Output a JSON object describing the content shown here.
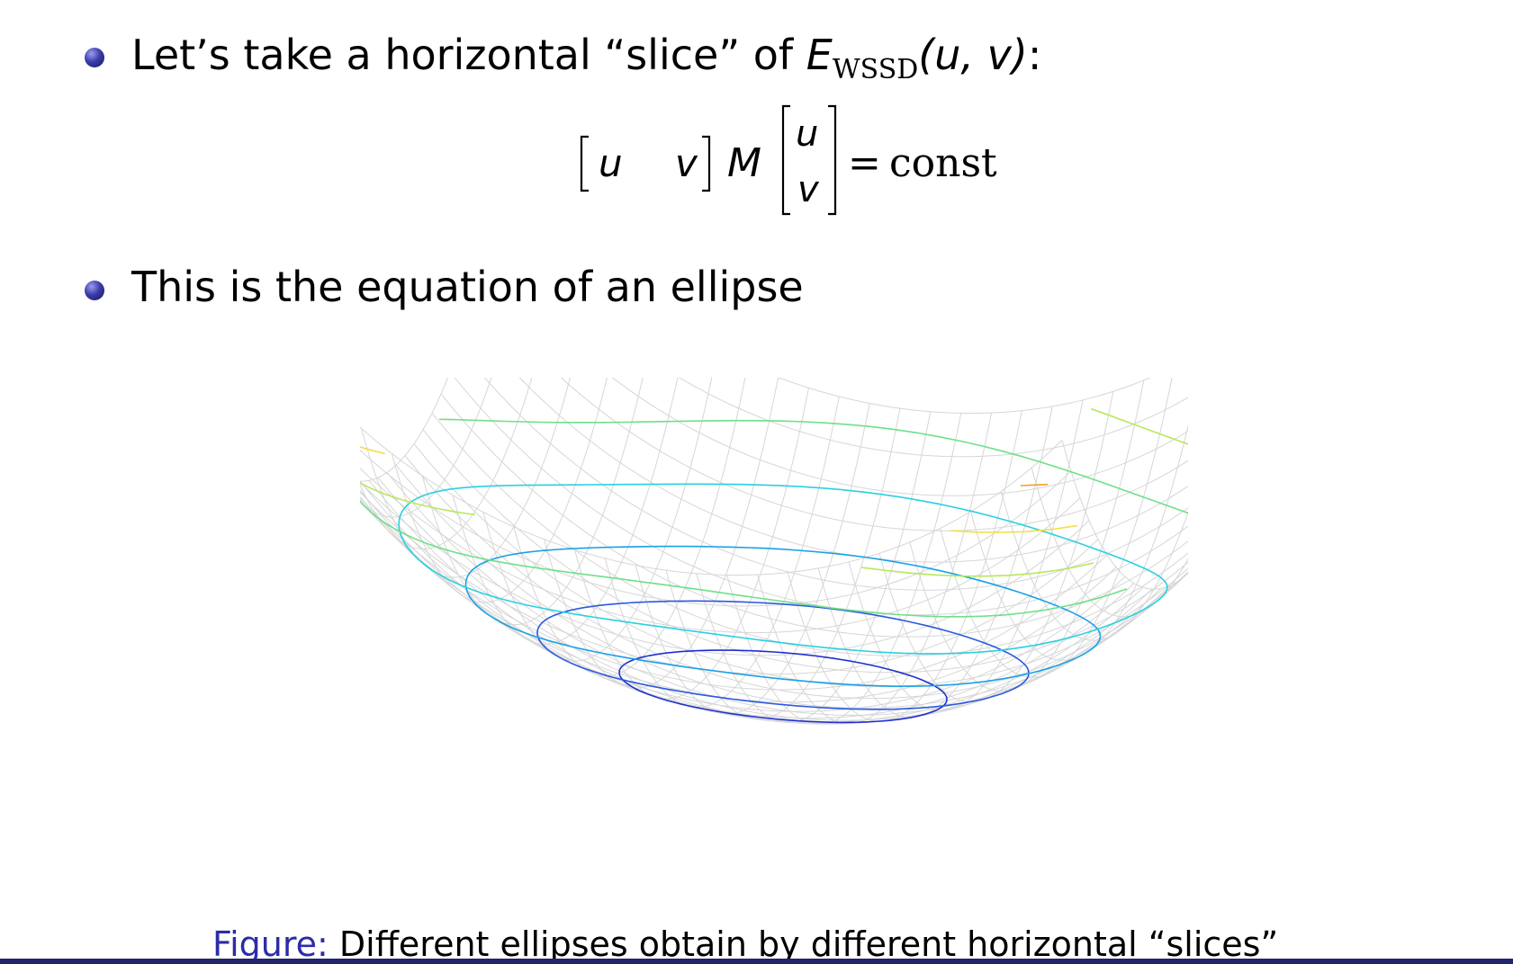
{
  "bullets": [
    {
      "prefix": "Let’s take a horizontal “slice” of ",
      "math_symbol": "E",
      "math_subscript": "WSSD",
      "math_args": "(u, v)",
      "suffix": ":"
    },
    {
      "text": "This is the equation of an ellipse"
    }
  ],
  "equation": {
    "row_vector": [
      "u",
      "v"
    ],
    "matrix": "M",
    "col_vector": [
      "u",
      "v"
    ],
    "equals": "=",
    "rhs": "const"
  },
  "figure": {
    "contour_colors": [
      "#1f2fd0",
      "#2a5ae0",
      "#1aa0e6",
      "#2ad0e0",
      "#6ee08a",
      "#b6e85a",
      "#f0e040",
      "#f0a030",
      "#e84a2a",
      "#d01818"
    ]
  },
  "caption": {
    "label": "Figure:",
    "text": " Different ellipses obtain by different horizontal “slices”"
  }
}
